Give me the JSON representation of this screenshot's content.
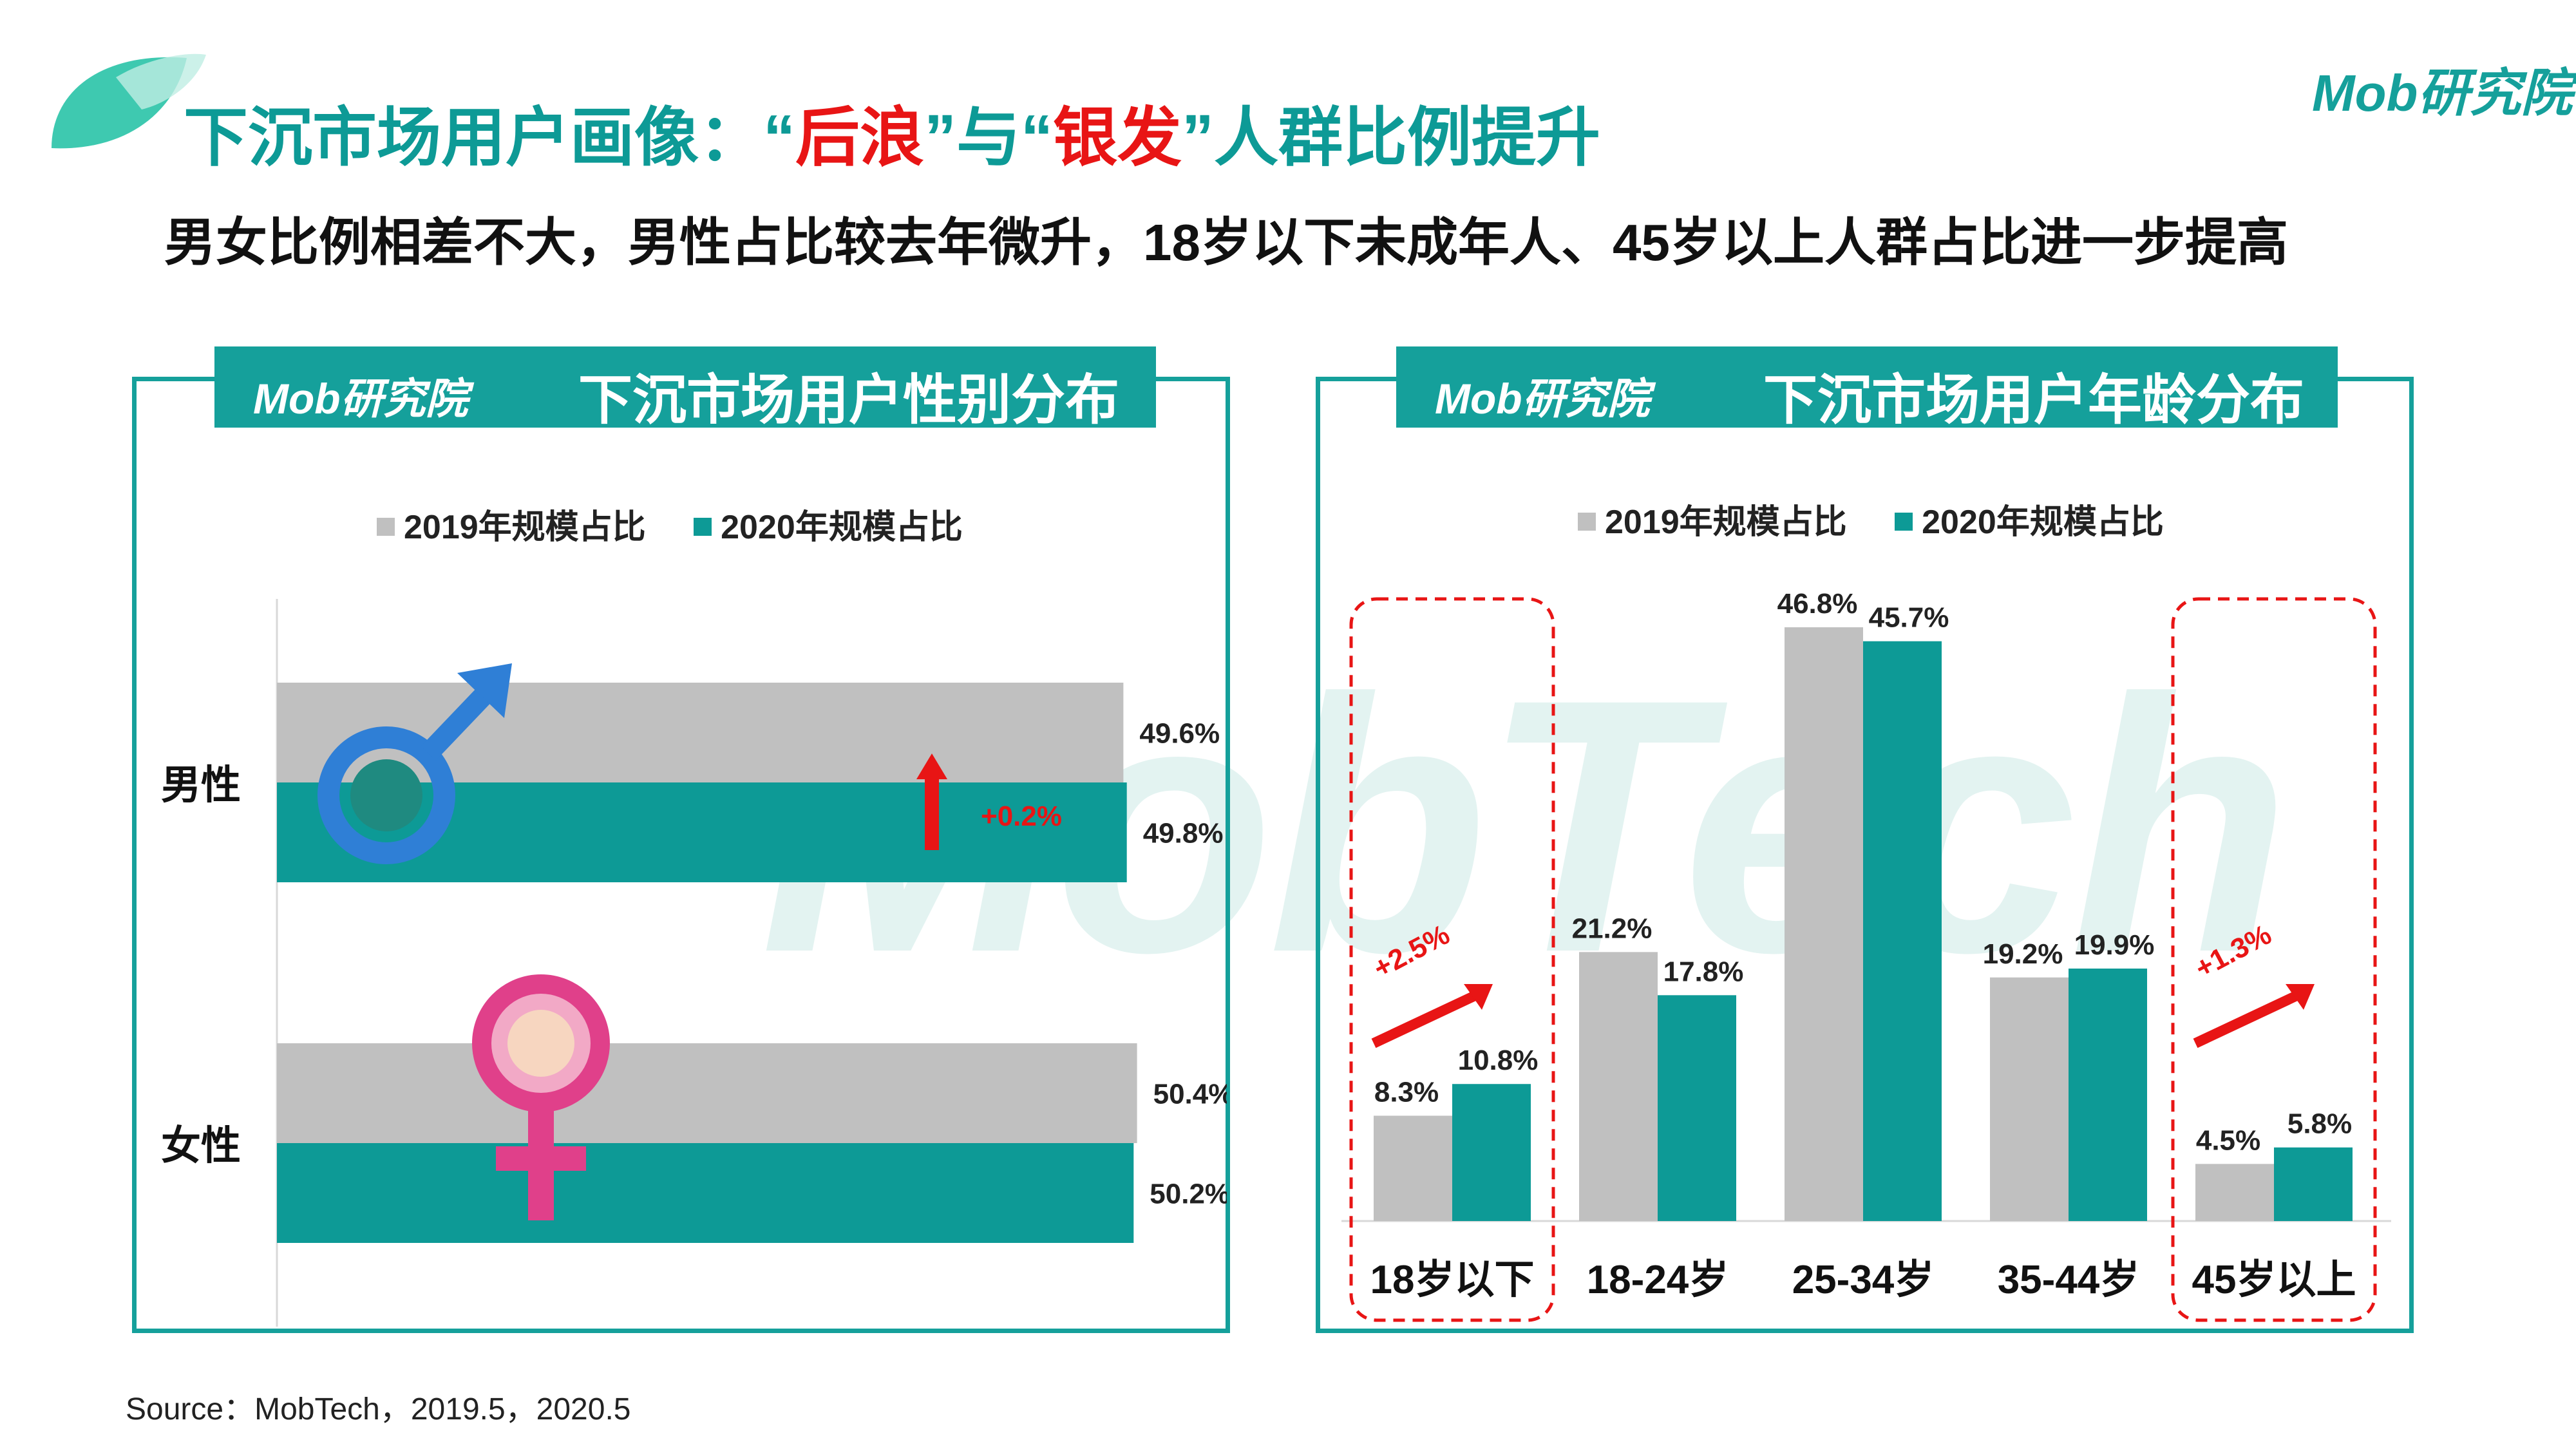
{
  "header": {
    "title_part1": "下沉市场用户画像：“",
    "title_red1": "后浪",
    "title_part2": "”与“",
    "title_red2": "银发",
    "title_part3": "”人群比例提升",
    "subtitle": "男女比例相差不大，男性占比较去年微升，18岁以下未成年人、45岁以上人群占比进一步提高",
    "brand": "Mob研究院"
  },
  "watermark": "MobTech",
  "source": "Source：MobTech，2019.5，2020.5",
  "colors": {
    "accent": "#15a09b",
    "y2019": "#c0c0c0",
    "y2020": "#0d9a96",
    "highlight": "#e81515",
    "male_icon": "#2f7fd6",
    "female_icon": "#e0408a"
  },
  "chart_data": [
    {
      "type": "bar",
      "orientation": "horizontal",
      "panel_logo": "Mob研究院",
      "title": "下沉市场用户性别分布",
      "categories": [
        "男性",
        "女性"
      ],
      "series": [
        {
          "name": "2019年规模占比",
          "values": [
            49.6,
            50.4
          ],
          "labels": [
            "49.6%",
            "50.4%"
          ]
        },
        {
          "name": "2020年规模占比",
          "values": [
            49.8,
            50.2
          ],
          "labels": [
            "49.8%",
            "50.2%"
          ]
        }
      ],
      "annotations": [
        {
          "category": "男性",
          "text": "+0.2%"
        }
      ],
      "legend": "top"
    },
    {
      "type": "bar",
      "orientation": "vertical",
      "panel_logo": "Mob研究院",
      "title": "下沉市场用户年龄分布",
      "categories": [
        "18岁以下",
        "18-24岁",
        "25-34岁",
        "35-44岁",
        "45岁以上"
      ],
      "series": [
        {
          "name": "2019年规模占比",
          "values": [
            8.3,
            21.2,
            46.8,
            19.2,
            4.5
          ],
          "labels": [
            "8.3%",
            "21.2%",
            "46.8%",
            "19.2%",
            "4.5%"
          ]
        },
        {
          "name": "2020年规模占比",
          "values": [
            10.8,
            17.8,
            45.7,
            19.9,
            5.8
          ],
          "labels": [
            "10.8%",
            "17.8%",
            "45.7%",
            "19.9%",
            "5.8%"
          ]
        }
      ],
      "annotations": [
        {
          "category": "18岁以下",
          "text": "+2.5%"
        },
        {
          "category": "45岁以上",
          "text": "+1.3%"
        }
      ],
      "legend": "top"
    }
  ]
}
